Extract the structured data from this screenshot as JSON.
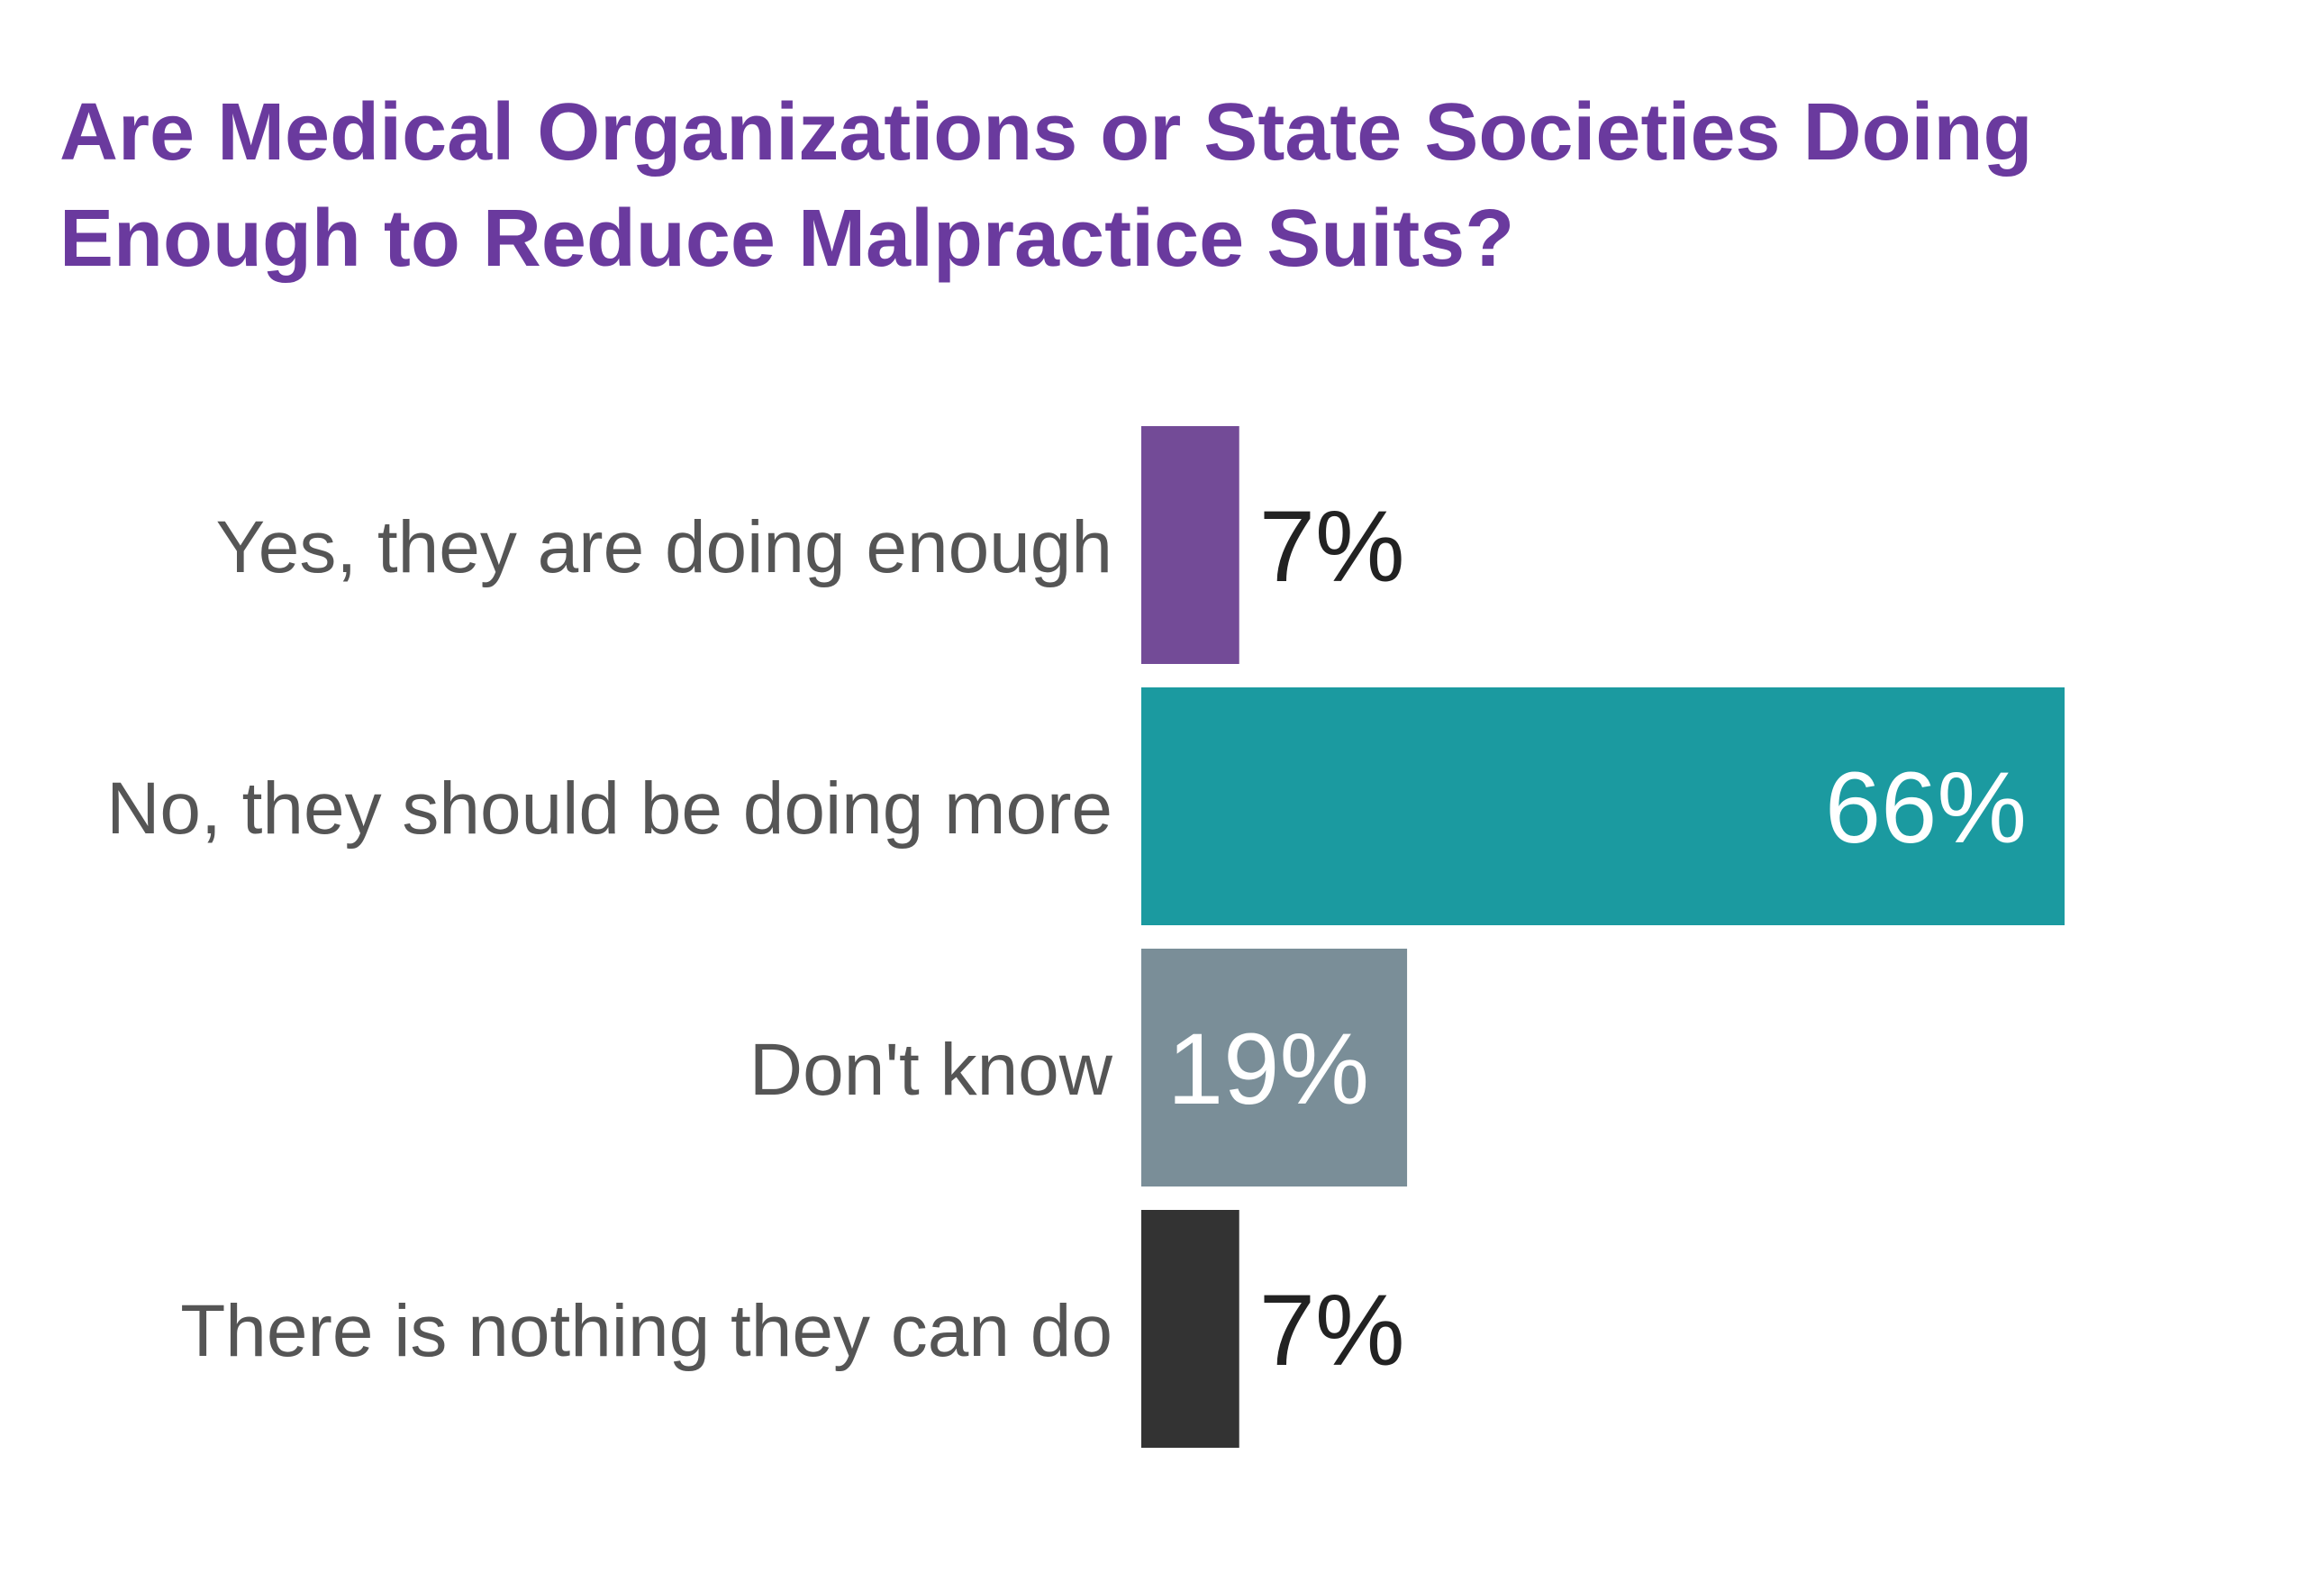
{
  "title_lines": [
    "Are Medical Organizations or State Societies Doing",
    "Enough to Reduce Malpractice Suits?"
  ],
  "chart_data": {
    "type": "bar",
    "orientation": "horizontal",
    "title": "Are Medical Organizations or State Societies Doing Enough to Reduce Malpractice Suits?",
    "categories": [
      "Yes, they are doing enough",
      "No, they should be doing more",
      "Don't know",
      "There is nothing they can do"
    ],
    "values": [
      7,
      66,
      19,
      7
    ],
    "value_labels": [
      "7%",
      "66%",
      "19%",
      "7%"
    ],
    "colors": [
      "#734b97",
      "#1b9aa0",
      "#7a8e98",
      "#333333"
    ],
    "label_colors": [
      "#222222",
      "#ffffff",
      "#ffffff",
      "#222222"
    ],
    "label_inside": [
      false,
      true,
      true,
      false
    ],
    "xlim": [
      0,
      66
    ],
    "grid": false,
    "legend": "none"
  }
}
